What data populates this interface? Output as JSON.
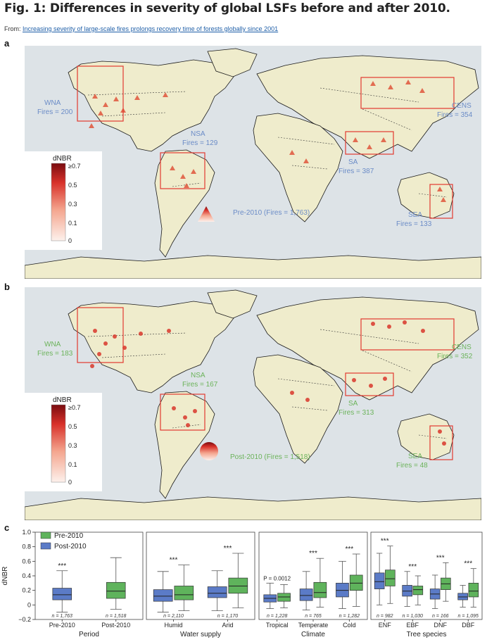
{
  "figure": {
    "title": "Fig. 1: Differences in severity of global LSFs before and after 2010.",
    "from_prefix": "From: ",
    "from_link": "Increasing severity of large-scale fires prolongs recovery time of forests globally since 2001"
  },
  "panel_a": {
    "label": "a",
    "legend_title": "dNBR",
    "legend_ticks": [
      "≥0.7",
      "0.5",
      "0.3",
      "0.1",
      "0"
    ],
    "marker_label": "Pre-2010 (Fires = 1,763)",
    "accent": "#6b8cc7",
    "regions": [
      {
        "name": "WNA",
        "fires": "Fires = 200"
      },
      {
        "name": "NSA",
        "fires": "Fires = 129"
      },
      {
        "name": "CENS",
        "fires": "Fires = 354"
      },
      {
        "name": "SA",
        "fires": "Fires = 387"
      },
      {
        "name": "SEA",
        "fires": "Fires = 133"
      }
    ]
  },
  "panel_b": {
    "label": "b",
    "legend_title": "dNBR",
    "legend_ticks": [
      "≥0.7",
      "0.5",
      "0.3",
      "0.1",
      "0"
    ],
    "marker_label": "Post-2010 (Fires = 1,518)",
    "accent": "#6bb35a",
    "regions": [
      {
        "name": "WNA",
        "fires": "Fires = 183"
      },
      {
        "name": "NSA",
        "fires": "Fires = 167"
      },
      {
        "name": "CENS",
        "fires": "Fires = 352"
      },
      {
        "name": "SA",
        "fires": "Fires = 313"
      },
      {
        "name": "SEA",
        "fires": "Fires = 48"
      }
    ]
  },
  "chart_data": {
    "type": "box",
    "label": "c",
    "ylabel": "dNBR",
    "ylim": [
      -0.2,
      1.0
    ],
    "yticks": [
      "1.0",
      "0.8",
      "0.6",
      "0.4",
      "0.2",
      "0",
      "−0.2"
    ],
    "legend": [
      {
        "name": "Pre-2010",
        "color": "#5fb35c"
      },
      {
        "name": "Post-2010",
        "color": "#5b7bc7"
      }
    ],
    "groups": [
      {
        "name": "Period",
        "categories": [
          {
            "label": "Pre-2010",
            "sig": "***",
            "boxes": [
              {
                "series": "Post-2010",
                "n": "n = 1,763",
                "min": -0.1,
                "q1": 0.07,
                "median": 0.14,
                "q3": 0.23,
                "max": 0.47
              }
            ]
          },
          {
            "label": "Post-2010",
            "sig": "",
            "boxes": [
              {
                "series": "Pre-2010",
                "n": "n = 1,518",
                "min": -0.06,
                "q1": 0.09,
                "median": 0.19,
                "q3": 0.31,
                "max": 0.65
              }
            ]
          }
        ]
      },
      {
        "name": "Water supply",
        "categories": [
          {
            "label": "Humid",
            "sig": "***",
            "boxes": [
              {
                "series": "Post-2010",
                "n": "n = 2,110",
                "min": -0.1,
                "q1": 0.05,
                "median": 0.12,
                "q3": 0.21,
                "max": 0.46
              },
              {
                "series": "Pre-2010",
                "n": "",
                "min": -0.08,
                "q1": 0.07,
                "median": 0.14,
                "q3": 0.26,
                "max": 0.55
              }
            ]
          },
          {
            "label": "Arid",
            "sig": "***",
            "boxes": [
              {
                "series": "Post-2010",
                "n": "n = 1,170",
                "min": -0.08,
                "q1": 0.1,
                "median": 0.16,
                "q3": 0.25,
                "max": 0.47
              },
              {
                "series": "Pre-2010",
                "n": "",
                "min": -0.04,
                "q1": 0.16,
                "median": 0.26,
                "q3": 0.37,
                "max": 0.71
              }
            ]
          }
        ]
      },
      {
        "name": "Climate",
        "categories": [
          {
            "label": "Tropical",
            "sig": "P = 0.0012",
            "boxes": [
              {
                "series": "Post-2010",
                "n": "n = 1,228",
                "min": -0.05,
                "q1": 0.04,
                "median": 0.09,
                "q3": 0.14,
                "max": 0.3
              },
              {
                "series": "Pre-2010",
                "n": "",
                "min": -0.04,
                "q1": 0.05,
                "median": 0.11,
                "q3": 0.16,
                "max": 0.28
              }
            ]
          },
          {
            "label": "Temperate",
            "sig": "***",
            "boxes": [
              {
                "series": "Post-2010",
                "n": "n = 765",
                "min": -0.07,
                "q1": 0.06,
                "median": 0.13,
                "q3": 0.22,
                "max": 0.46
              },
              {
                "series": "Pre-2010",
                "n": "",
                "min": -0.03,
                "q1": 0.1,
                "median": 0.17,
                "q3": 0.31,
                "max": 0.64
              }
            ]
          },
          {
            "label": "Cold",
            "sig": "***",
            "boxes": [
              {
                "series": "Post-2010",
                "n": "n = 1,282",
                "min": -0.05,
                "q1": 0.11,
                "median": 0.2,
                "q3": 0.3,
                "max": 0.6
              },
              {
                "series": "Pre-2010",
                "n": "",
                "min": -0.02,
                "q1": 0.2,
                "median": 0.3,
                "q3": 0.41,
                "max": 0.7
              }
            ]
          }
        ]
      },
      {
        "name": "Tree species",
        "categories": [
          {
            "label": "ENF",
            "sig": "***",
            "boxes": [
              {
                "series": "Post-2010",
                "n": "n = 982",
                "min": 0.0,
                "q1": 0.22,
                "median": 0.32,
                "q3": 0.44,
                "max": 0.71
              },
              {
                "series": "Pre-2010",
                "n": "",
                "min": 0.02,
                "q1": 0.26,
                "median": 0.36,
                "q3": 0.48,
                "max": 0.81
              }
            ]
          },
          {
            "label": "EBF",
            "sig": "***",
            "boxes": [
              {
                "series": "Post-2010",
                "n": "n = 1,030",
                "min": -0.02,
                "q1": 0.12,
                "median": 0.19,
                "q3": 0.27,
                "max": 0.46
              },
              {
                "series": "Pre-2010",
                "n": "",
                "min": 0.0,
                "q1": 0.14,
                "median": 0.21,
                "q3": 0.26,
                "max": 0.4
              }
            ]
          },
          {
            "label": "DNF",
            "sig": "***",
            "boxes": [
              {
                "series": "Post-2010",
                "n": "n = 166",
                "min": -0.05,
                "q1": 0.08,
                "median": 0.15,
                "q3": 0.22,
                "max": 0.41
              },
              {
                "series": "Pre-2010",
                "n": "",
                "min": 0.05,
                "q1": 0.21,
                "median": 0.29,
                "q3": 0.37,
                "max": 0.58
              }
            ]
          },
          {
            "label": "DBF",
            "sig": "***",
            "boxes": [
              {
                "series": "Post-2010",
                "n": "n = 1,095",
                "min": -0.03,
                "q1": 0.07,
                "median": 0.11,
                "q3": 0.16,
                "max": 0.27
              },
              {
                "series": "Pre-2010",
                "n": "",
                "min": -0.03,
                "q1": 0.11,
                "median": 0.19,
                "q3": 0.3,
                "max": 0.5
              }
            ]
          }
        ]
      }
    ]
  }
}
